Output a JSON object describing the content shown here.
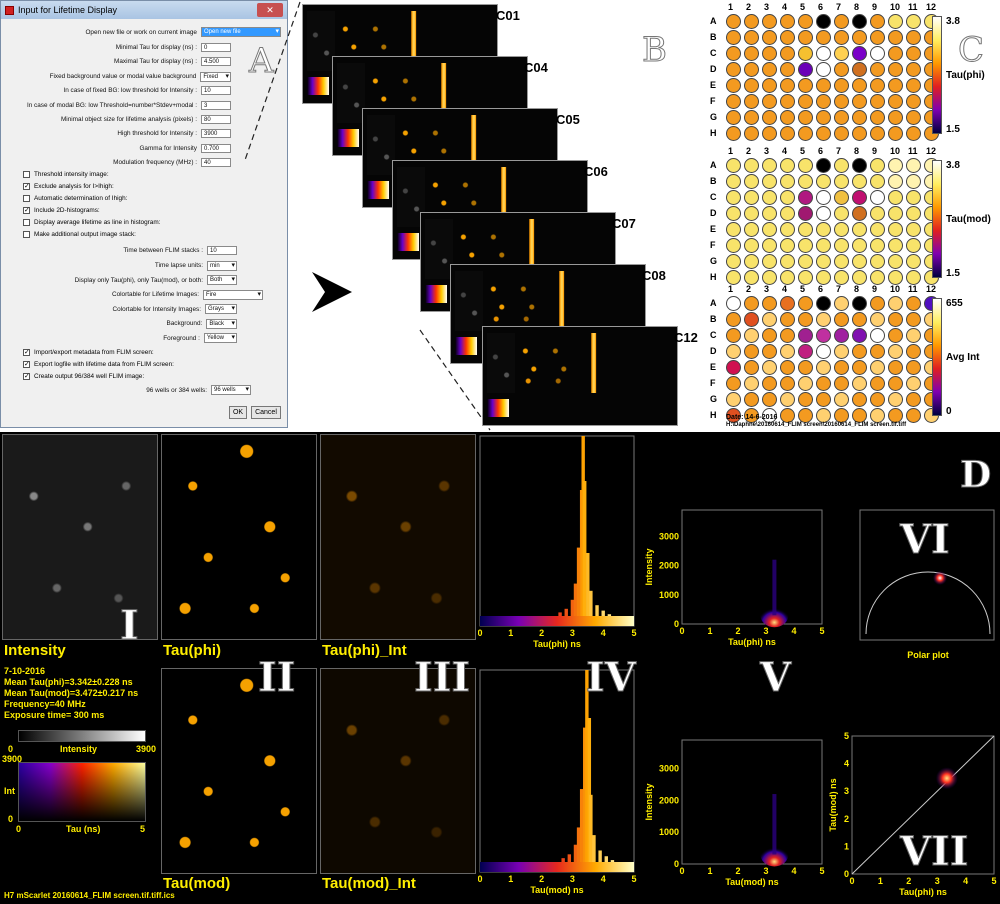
{
  "dialog": {
    "title": "Input for Lifetime Display",
    "close": "✕",
    "fields": [
      {
        "label": "Open new file or work on current image",
        "value": "Open new file",
        "kind": "select-hl"
      },
      {
        "label": "Minimal Tau for display (ns) :",
        "value": "0",
        "kind": "input"
      },
      {
        "label": "Maximal Tau for display (ns) :",
        "value": "4.500",
        "kind": "input"
      },
      {
        "label": "Fixed background value or modal value background",
        "value": "Fixed",
        "kind": "select"
      },
      {
        "label": "In case of fixed BG: low threshold for Intensity :",
        "value": "10",
        "kind": "input"
      },
      {
        "label": "In case of modal BG: low Threshold=number*Stdev+modal :",
        "value": "3",
        "kind": "input"
      },
      {
        "label": "Minimal object size for lifetime analysis (pixels) :",
        "value": "80",
        "kind": "input"
      },
      {
        "label": "High threshold for Intensity :",
        "value": "3900",
        "kind": "input"
      },
      {
        "label": "Gamma for Intensity",
        "value": "0.700",
        "kind": "input"
      },
      {
        "label": "Modulation frequency (MHz) :",
        "value": "40",
        "kind": "input"
      }
    ],
    "checks1": [
      {
        "label": "Threshold intensity image:",
        "checked": ""
      },
      {
        "label": "Exclude analysis for I>Ihigh:",
        "checked": "✓"
      },
      {
        "label": "Automatic determination of Ihigh:",
        "checked": ""
      },
      {
        "label": "Include 2D-histograms:",
        "checked": "✓"
      },
      {
        "label": "Display average lifetime as line in histogram:",
        "checked": ""
      },
      {
        "label": "Make additional output image stack:",
        "checked": ""
      }
    ],
    "fields2": [
      {
        "label": "Time between FLIM stacks :",
        "value": "10",
        "kind": "input"
      },
      {
        "label": "Time lapse units:",
        "value": "min",
        "kind": "select"
      },
      {
        "label": "Display only Tau(phi), only Tau(mod), or both:",
        "value": "Both",
        "kind": "select"
      },
      {
        "label": "Colortable for Lifetime Images:",
        "value": "Fire",
        "kind": "select"
      },
      {
        "label": "Colortable for Intensity Images:",
        "value": "Grays",
        "kind": "select"
      },
      {
        "label": "Background:",
        "value": "Black",
        "kind": "select"
      },
      {
        "label": "Foreground :",
        "value": "Yellow",
        "kind": "select"
      }
    ],
    "checks2": [
      {
        "label": "Import/export metadata from FLIM screen:",
        "checked": "✓"
      },
      {
        "label": "Export logfile with lifetime data from FLIM screen:",
        "checked": "✓"
      },
      {
        "label": "Create output 96/384 well FLIM image:",
        "checked": "✓"
      }
    ],
    "wells_label": "96 wells or 384 wells:",
    "wells_value": "96 wells",
    "ok": "OK",
    "cancel": "Cancel",
    "panel_letter": "A"
  },
  "montages": {
    "labels": [
      "C01",
      "C04",
      "C05",
      "C06",
      "C07",
      "C08",
      "C12"
    ],
    "panel_letter": "B"
  },
  "plate": {
    "panel_letter": "C",
    "cols": [
      "1",
      "2",
      "3",
      "4",
      "5",
      "6",
      "7",
      "8",
      "9",
      "10",
      "11",
      "12"
    ],
    "rows": [
      "A",
      "B",
      "C",
      "D",
      "E",
      "F",
      "G",
      "H"
    ],
    "maps": [
      {
        "label": "Tau(phi)",
        "max": "3.8",
        "min": "1.5"
      },
      {
        "label": "Tau(mod)",
        "max": "3.8",
        "min": "1.5"
      },
      {
        "label": "Avg Int",
        "max": "655",
        "min": "0"
      }
    ],
    "date": "Date: 14-6-2016",
    "path": "H:\\Daphne\\20160614_FLIM screen\\20160614_FLIM screen.tif.tiff"
  },
  "panelD": {
    "letter": "D",
    "labels": {
      "intensity": "Intensity",
      "tau_phi": "Tau(phi)",
      "tau_phi_int": "Tau(phi)_Int",
      "tau_mod": "Tau(mod)",
      "tau_mod_int": "Tau(mod)_Int",
      "polar": "Polar plot"
    },
    "romans": [
      "I",
      "II",
      "III",
      "IV",
      "V",
      "VI",
      "VII"
    ],
    "info": [
      "7-10-2016",
      "Mean Tau(phi)=3.342±0.228 ns",
      "Mean Tau(mod)=3.472±0.217 ns",
      "Frequency=40 MHz",
      "Exposure time= 300 ms"
    ],
    "int_bar": {
      "min": "0",
      "label": "Intensity",
      "max": "3900"
    },
    "cmap2d": {
      "ymax": "3900",
      "ylabel": "Int",
      "ymin": "0",
      "xmin": "0",
      "xlabel": "Tau (ns)",
      "xmax": "5"
    },
    "footer": "H7  mScarlet 20160614_FLIM screen.tif.tiff.ics"
  },
  "chart_data": [
    {
      "type": "bar",
      "title": "",
      "xlabel": "Tau(phi) ns",
      "ylabel": "",
      "xlim": [
        0,
        5
      ],
      "x_ticks": [
        "0",
        "1",
        "2",
        "3",
        "4",
        "5"
      ],
      "peak_x": 3.34,
      "x": [
        2.6,
        2.8,
        3.0,
        3.1,
        3.2,
        3.3,
        3.35,
        3.4,
        3.5,
        3.6,
        3.8,
        4.0,
        4.2
      ],
      "values": [
        2,
        4,
        9,
        18,
        38,
        70,
        100,
        75,
        35,
        14,
        6,
        3,
        1
      ]
    },
    {
      "type": "heatmap",
      "title": "",
      "xlabel": "Tau(phi) ns",
      "ylabel": "Intensity",
      "xlim": [
        0,
        5
      ],
      "ylim": [
        0,
        3900
      ],
      "x_ticks": [
        "0",
        "1",
        "2",
        "3",
        "4",
        "5"
      ],
      "y_ticks": [
        "0",
        "1000",
        "2000",
        "3000"
      ]
    },
    {
      "type": "bar",
      "title": "",
      "xlabel": "Tau(mod) ns",
      "ylabel": "",
      "xlim": [
        0,
        5
      ],
      "x_ticks": [
        "0",
        "1",
        "2",
        "3",
        "4",
        "5"
      ],
      "peak_x": 3.47,
      "x": [
        2.7,
        2.9,
        3.1,
        3.2,
        3.3,
        3.4,
        3.47,
        3.55,
        3.6,
        3.7,
        3.9,
        4.1,
        4.3
      ],
      "values": [
        2,
        4,
        9,
        18,
        38,
        70,
        100,
        75,
        35,
        14,
        6,
        3,
        1
      ]
    },
    {
      "type": "heatmap",
      "title": "",
      "xlabel": "Tau(mod) ns",
      "ylabel": "Intensity",
      "xlim": [
        0,
        5
      ],
      "ylim": [
        0,
        3900
      ],
      "x_ticks": [
        "0",
        "1",
        "2",
        "3",
        "4",
        "5"
      ],
      "y_ticks": [
        "0",
        "1000",
        "2000",
        "3000"
      ]
    },
    {
      "type": "scatter",
      "title": "Polar plot",
      "xlabel": "",
      "ylabel": ""
    },
    {
      "type": "scatter",
      "title": "",
      "xlabel": "Tau(phi) ns",
      "ylabel": "Tau(mod) ns",
      "xlim": [
        0,
        5
      ],
      "ylim": [
        0,
        5
      ],
      "x_ticks": [
        "0",
        "1",
        "2",
        "3",
        "4",
        "5"
      ],
      "y_ticks": [
        "0",
        "1",
        "2",
        "3",
        "4",
        "5"
      ],
      "center": [
        3.34,
        3.47
      ]
    }
  ]
}
